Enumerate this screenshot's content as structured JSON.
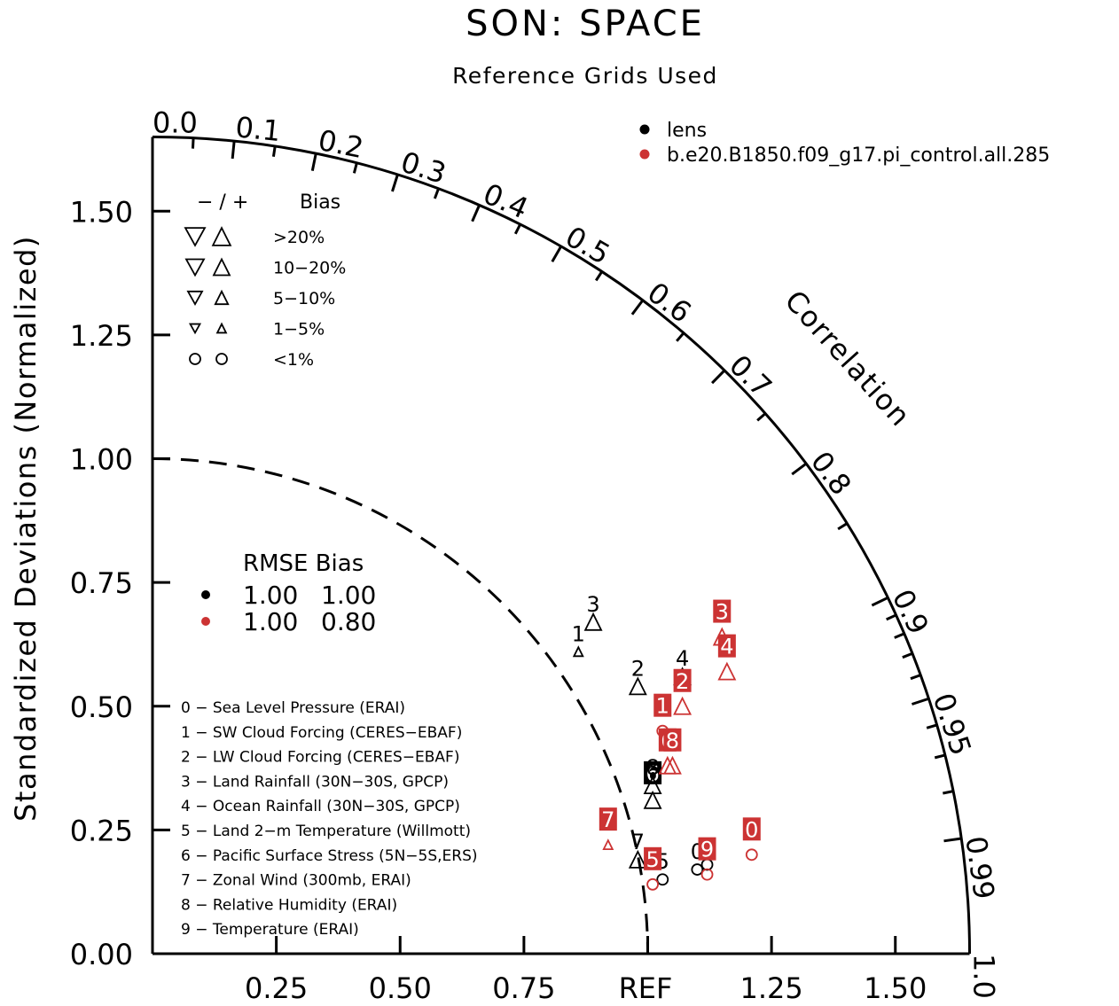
{
  "chart_data": {
    "type": "taylor_diagram",
    "title": "SON: SPACE",
    "subtitle": "Reference Grids Used",
    "ylabel": "Standardized Deviations (Normalized)",
    "correlation_label": "Correlation",
    "std_range": [
      0,
      1.65
    ],
    "ref_label": "REF",
    "y_tick_labels": [
      "0.00",
      "0.25",
      "0.50",
      "0.75",
      "1.00",
      "1.25",
      "1.50"
    ],
    "x_tick_labels": [
      "0.25",
      "0.50",
      "0.75",
      "1.25",
      "1.50"
    ],
    "corr_ticks_major": [
      "0.0",
      "0.1",
      "0.2",
      "0.3",
      "0.4",
      "0.5",
      "0.6",
      "0.7",
      "0.8",
      "0.9",
      "0.95",
      "0.99",
      "1.0"
    ],
    "corr_ticks_minor": [
      0.05,
      0.15,
      0.25,
      0.35,
      0.45,
      0.55,
      0.65,
      0.75,
      0.85,
      0.91,
      0.92,
      0.93,
      0.94,
      0.96,
      0.97,
      0.98
    ],
    "colors": {
      "lens": "#000000",
      "pi_control": "#cc3333"
    },
    "legend_models": [
      {
        "label": "lens",
        "color": "#000000"
      },
      {
        "label": "b.e20.B1850.f09_g17.pi_control.all.285",
        "color": "#cc3333"
      }
    ],
    "bias_legend": {
      "header_sign": "− / +",
      "header_label": "Bias",
      "rows": [
        ">20%",
        "10−20%",
        "5−10%",
        "1−5%",
        "<1%"
      ]
    },
    "rmse_legend": {
      "header": "RMSE Bias",
      "rows": [
        {
          "color": "#000000",
          "rmse": "1.00",
          "bias": "1.00"
        },
        {
          "color": "#cc3333",
          "rmse": "1.00",
          "bias": "0.80"
        }
      ]
    },
    "variables": [
      "0 − Sea Level Pressure (ERAI)",
      "1 − SW Cloud Forcing (CERES−EBAF)",
      "2 − LW Cloud Forcing (CERES−EBAF)",
      "3 − Land Rainfall (30N−30S, GPCP)",
      "4 − Ocean Rainfall (30N−30S, GPCP)",
      "5 − Land 2−m Temperature (Willmott)",
      "6 − Pacific Surface Stress (5N−5S,ERS)",
      "7 − Zonal Wind (300mb, ERAI)",
      "8 − Relative Humidity (ERAI)",
      "9 − Temperature (ERAI)"
    ],
    "series": [
      {
        "name": "lens",
        "color": "#000000",
        "points": [
          {
            "id": "0",
            "x": 1.1,
            "y": 0.17,
            "marker": "circle"
          },
          {
            "id": "1",
            "x": 0.86,
            "y": 0.61,
            "marker": "tri-up-small"
          },
          {
            "id": "2",
            "x": 0.98,
            "y": 0.54,
            "marker": "tri-up"
          },
          {
            "id": "3",
            "x": 0.89,
            "y": 0.67,
            "marker": "tri-up"
          },
          {
            "id": "4",
            "x": 1.07,
            "y": 0.56,
            "marker": "tri-up"
          },
          {
            "id": "5",
            "x": 1.03,
            "y": 0.15,
            "marker": "circle"
          },
          {
            "id": "6",
            "x": 1.01,
            "y": 0.31,
            "marker": "tri-up"
          },
          {
            "id": "7",
            "x": 0.98,
            "y": 0.19,
            "marker": "tri-up"
          },
          {
            "id": "8",
            "x": 1.01,
            "y": 0.34,
            "marker": "tri-up"
          },
          {
            "id": "9",
            "x": 1.12,
            "y": 0.18,
            "marker": "circle"
          }
        ]
      },
      {
        "name": "b.e20.B1850.f09_g17.pi_control.all.285",
        "color": "#cc3333",
        "points": [
          {
            "id": "0",
            "x": 1.21,
            "y": 0.2,
            "marker": "circle"
          },
          {
            "id": "1",
            "x": 1.03,
            "y": 0.45,
            "marker": "circle"
          },
          {
            "id": "2",
            "x": 1.07,
            "y": 0.5,
            "marker": "tri-up"
          },
          {
            "id": "3",
            "x": 1.15,
            "y": 0.64,
            "marker": "tri-up"
          },
          {
            "id": "4",
            "x": 1.16,
            "y": 0.57,
            "marker": "tri-up"
          },
          {
            "id": "5",
            "x": 1.01,
            "y": 0.14,
            "marker": "circle"
          },
          {
            "id": "6",
            "x": 1.04,
            "y": 0.38,
            "marker": "tri-up"
          },
          {
            "id": "7",
            "x": 0.92,
            "y": 0.22,
            "marker": "tri-up-small"
          },
          {
            "id": "8",
            "x": 1.05,
            "y": 0.38,
            "marker": "tri-up"
          },
          {
            "id": "9",
            "x": 1.12,
            "y": 0.16,
            "marker": "circle"
          }
        ]
      }
    ]
  }
}
